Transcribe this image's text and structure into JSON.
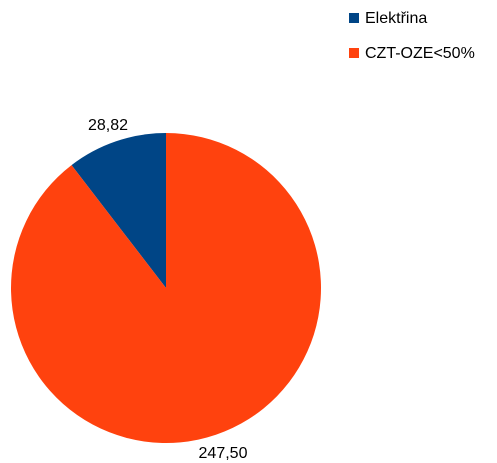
{
  "chart_data": {
    "type": "pie",
    "title": "",
    "legend_position": "top-right",
    "series": [
      {
        "name": "Elektřina",
        "value": 28.82,
        "label": "28,82",
        "color": "#004586"
      },
      {
        "name": "CZT-OZE<50%",
        "value": 247.5,
        "label": "247,50",
        "color": "#ff420e"
      }
    ]
  }
}
